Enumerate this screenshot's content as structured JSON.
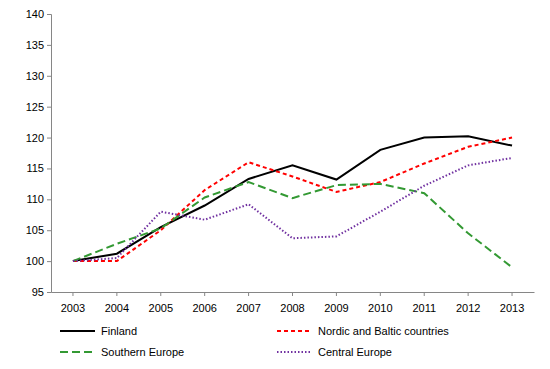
{
  "chart_data": {
    "type": "line",
    "categories": [
      "2003",
      "2004",
      "2005",
      "2006",
      "2007",
      "2008",
      "2009",
      "2010",
      "2011",
      "2012",
      "2013"
    ],
    "series": [
      {
        "name": "Finland",
        "color": "#000000",
        "line_style": "solid",
        "values": [
          100,
          101.2,
          105.5,
          109,
          113.3,
          115.5,
          113.2,
          118,
          120,
          120.2,
          118.7
        ]
      },
      {
        "name": "Nordic and Baltic countries",
        "color": "#ff0000",
        "line_style": "dashed",
        "values": [
          100,
          100,
          105,
          111.5,
          116,
          113.7,
          111.2,
          112.8,
          115.8,
          118.5,
          120
        ]
      },
      {
        "name": "Southern Europe",
        "color": "#339933",
        "line_style": "longdash",
        "values": [
          100,
          102.8,
          105.3,
          110.3,
          112.8,
          110.2,
          112.3,
          112.5,
          111,
          104.5,
          99
        ]
      },
      {
        "name": "Central Europe",
        "color": "#7030a0",
        "line_style": "dotted",
        "values": [
          100,
          100.5,
          108,
          106.7,
          109.2,
          103.7,
          104,
          108,
          112.2,
          115.5,
          116.7
        ]
      }
    ],
    "ylim": [
      95,
      140
    ],
    "yticks": [
      95,
      100,
      105,
      110,
      115,
      120,
      125,
      130,
      135,
      140
    ],
    "grid": false,
    "legend": "bottom"
  }
}
